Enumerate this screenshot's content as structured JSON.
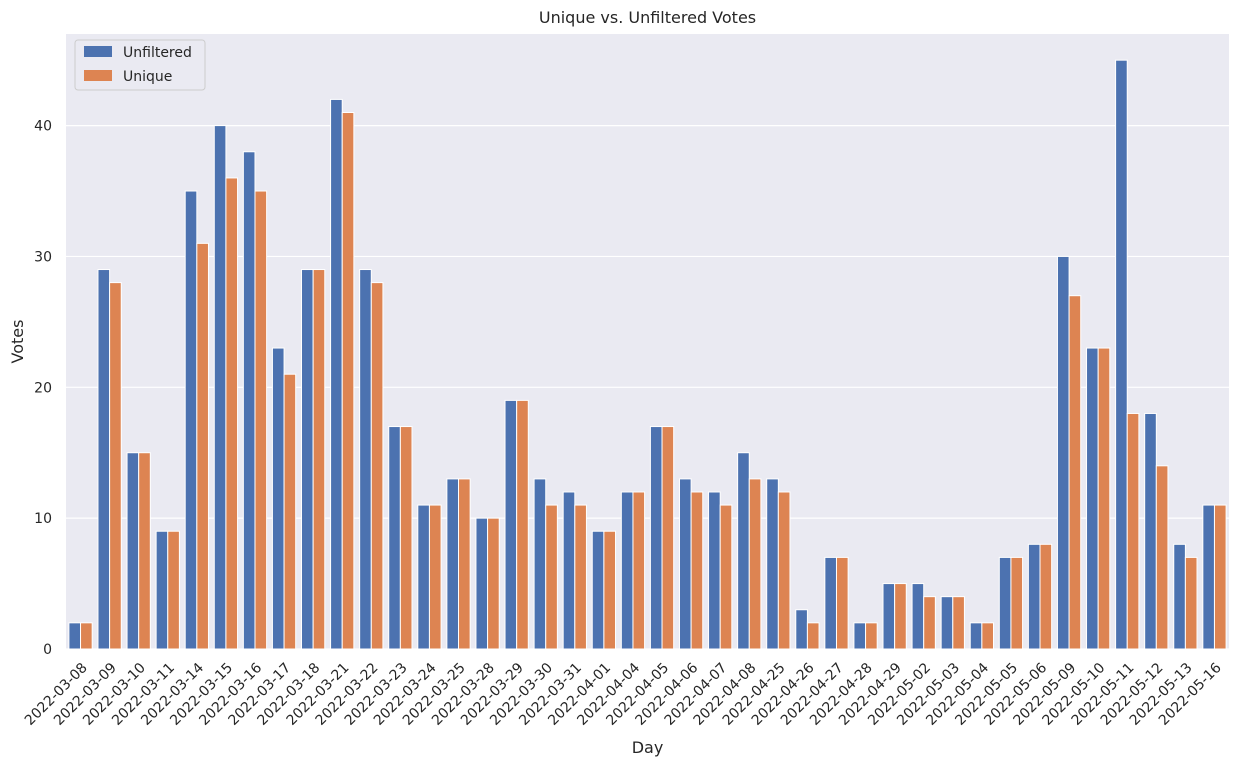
{
  "chart_data": {
    "type": "bar",
    "title": "Unique vs. Unfiltered Votes",
    "xlabel": "Day",
    "ylabel": "Votes",
    "ylim": [
      0,
      47
    ],
    "yticks": [
      0,
      10,
      20,
      30,
      40
    ],
    "grid": true,
    "legend_position": "top-left",
    "categories": [
      "2022-03-08",
      "2022-03-09",
      "2022-03-10",
      "2022-03-11",
      "2022-03-14",
      "2022-03-15",
      "2022-03-16",
      "2022-03-17",
      "2022-03-18",
      "2022-03-21",
      "2022-03-22",
      "2022-03-23",
      "2022-03-24",
      "2022-03-25",
      "2022-03-28",
      "2022-03-29",
      "2022-03-30",
      "2022-03-31",
      "2022-04-01",
      "2022-04-04",
      "2022-04-05",
      "2022-04-06",
      "2022-04-07",
      "2022-04-08",
      "2022-04-25",
      "2022-04-26",
      "2022-04-27",
      "2022-04-28",
      "2022-04-29",
      "2022-05-02",
      "2022-05-03",
      "2022-05-04",
      "2022-05-05",
      "2022-05-06",
      "2022-05-09",
      "2022-05-10",
      "2022-05-11",
      "2022-05-12",
      "2022-05-13",
      "2022-05-16"
    ],
    "series": [
      {
        "name": "Unfiltered",
        "color": "#4c72b0",
        "values": [
          2,
          29,
          15,
          9,
          35,
          40,
          38,
          23,
          29,
          42,
          29,
          17,
          11,
          13,
          10,
          19,
          13,
          12,
          9,
          12,
          17,
          13,
          12,
          15,
          13,
          3,
          7,
          2,
          5,
          5,
          4,
          2,
          7,
          8,
          30,
          23,
          45,
          18,
          8,
          11
        ]
      },
      {
        "name": "Unique",
        "color": "#dd8452",
        "values": [
          2,
          28,
          15,
          9,
          31,
          36,
          35,
          21,
          29,
          41,
          28,
          17,
          11,
          13,
          10,
          19,
          11,
          11,
          9,
          12,
          17,
          12,
          11,
          13,
          12,
          2,
          7,
          2,
          5,
          4,
          4,
          2,
          7,
          8,
          27,
          23,
          18,
          14,
          7,
          11
        ]
      }
    ]
  },
  "style": {
    "plot_background": "#eaeaf2",
    "grid_color": "#ffffff",
    "text_color": "#262626"
  }
}
